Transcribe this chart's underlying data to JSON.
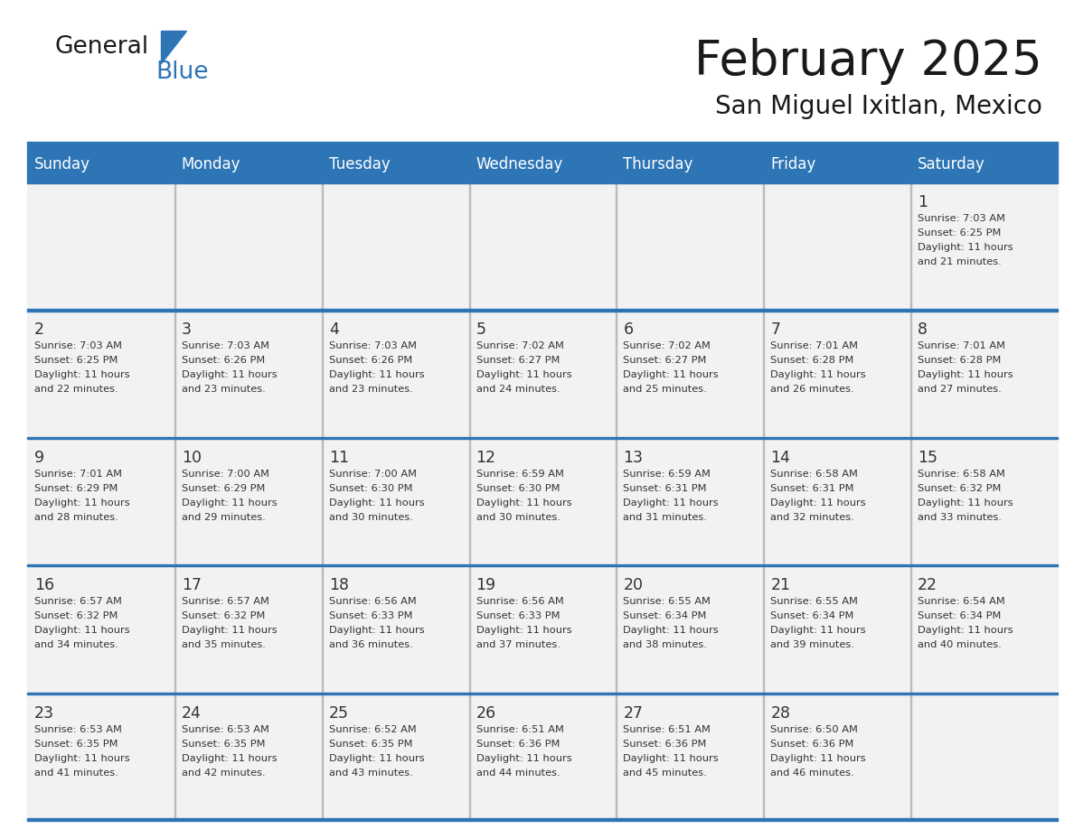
{
  "title": "February 2025",
  "subtitle": "San Miguel Ixitlan, Mexico",
  "days_of_week": [
    "Sunday",
    "Monday",
    "Tuesday",
    "Wednesday",
    "Thursday",
    "Friday",
    "Saturday"
  ],
  "header_bg": "#2E75B6",
  "header_text": "#FFFFFF",
  "cell_bg": "#F2F2F2",
  "cell_text": "#333333",
  "grid_color": "#2E75B6",
  "title_color": "#1a1a1a",
  "logo_general_color": "#1a1a1a",
  "logo_blue_color": "#2E75B6",
  "weeks": [
    [
      null,
      null,
      null,
      null,
      null,
      null,
      {
        "day": 1,
        "sunrise": "7:03 AM",
        "sunset": "6:25 PM",
        "daylight": "11 hours\nand 21 minutes."
      }
    ],
    [
      {
        "day": 2,
        "sunrise": "7:03 AM",
        "sunset": "6:25 PM",
        "daylight": "11 hours\nand 22 minutes."
      },
      {
        "day": 3,
        "sunrise": "7:03 AM",
        "sunset": "6:26 PM",
        "daylight": "11 hours\nand 23 minutes."
      },
      {
        "day": 4,
        "sunrise": "7:03 AM",
        "sunset": "6:26 PM",
        "daylight": "11 hours\nand 23 minutes."
      },
      {
        "day": 5,
        "sunrise": "7:02 AM",
        "sunset": "6:27 PM",
        "daylight": "11 hours\nand 24 minutes."
      },
      {
        "day": 6,
        "sunrise": "7:02 AM",
        "sunset": "6:27 PM",
        "daylight": "11 hours\nand 25 minutes."
      },
      {
        "day": 7,
        "sunrise": "7:01 AM",
        "sunset": "6:28 PM",
        "daylight": "11 hours\nand 26 minutes."
      },
      {
        "day": 8,
        "sunrise": "7:01 AM",
        "sunset": "6:28 PM",
        "daylight": "11 hours\nand 27 minutes."
      }
    ],
    [
      {
        "day": 9,
        "sunrise": "7:01 AM",
        "sunset": "6:29 PM",
        "daylight": "11 hours\nand 28 minutes."
      },
      {
        "day": 10,
        "sunrise": "7:00 AM",
        "sunset": "6:29 PM",
        "daylight": "11 hours\nand 29 minutes."
      },
      {
        "day": 11,
        "sunrise": "7:00 AM",
        "sunset": "6:30 PM",
        "daylight": "11 hours\nand 30 minutes."
      },
      {
        "day": 12,
        "sunrise": "6:59 AM",
        "sunset": "6:30 PM",
        "daylight": "11 hours\nand 30 minutes."
      },
      {
        "day": 13,
        "sunrise": "6:59 AM",
        "sunset": "6:31 PM",
        "daylight": "11 hours\nand 31 minutes."
      },
      {
        "day": 14,
        "sunrise": "6:58 AM",
        "sunset": "6:31 PM",
        "daylight": "11 hours\nand 32 minutes."
      },
      {
        "day": 15,
        "sunrise": "6:58 AM",
        "sunset": "6:32 PM",
        "daylight": "11 hours\nand 33 minutes."
      }
    ],
    [
      {
        "day": 16,
        "sunrise": "6:57 AM",
        "sunset": "6:32 PM",
        "daylight": "11 hours\nand 34 minutes."
      },
      {
        "day": 17,
        "sunrise": "6:57 AM",
        "sunset": "6:32 PM",
        "daylight": "11 hours\nand 35 minutes."
      },
      {
        "day": 18,
        "sunrise": "6:56 AM",
        "sunset": "6:33 PM",
        "daylight": "11 hours\nand 36 minutes."
      },
      {
        "day": 19,
        "sunrise": "6:56 AM",
        "sunset": "6:33 PM",
        "daylight": "11 hours\nand 37 minutes."
      },
      {
        "day": 20,
        "sunrise": "6:55 AM",
        "sunset": "6:34 PM",
        "daylight": "11 hours\nand 38 minutes."
      },
      {
        "day": 21,
        "sunrise": "6:55 AM",
        "sunset": "6:34 PM",
        "daylight": "11 hours\nand 39 minutes."
      },
      {
        "day": 22,
        "sunrise": "6:54 AM",
        "sunset": "6:34 PM",
        "daylight": "11 hours\nand 40 minutes."
      }
    ],
    [
      {
        "day": 23,
        "sunrise": "6:53 AM",
        "sunset": "6:35 PM",
        "daylight": "11 hours\nand 41 minutes."
      },
      {
        "day": 24,
        "sunrise": "6:53 AM",
        "sunset": "6:35 PM",
        "daylight": "11 hours\nand 42 minutes."
      },
      {
        "day": 25,
        "sunrise": "6:52 AM",
        "sunset": "6:35 PM",
        "daylight": "11 hours\nand 43 minutes."
      },
      {
        "day": 26,
        "sunrise": "6:51 AM",
        "sunset": "6:36 PM",
        "daylight": "11 hours\nand 44 minutes."
      },
      {
        "day": 27,
        "sunrise": "6:51 AM",
        "sunset": "6:36 PM",
        "daylight": "11 hours\nand 45 minutes."
      },
      {
        "day": 28,
        "sunrise": "6:50 AM",
        "sunset": "6:36 PM",
        "daylight": "11 hours\nand 46 minutes."
      },
      null
    ]
  ]
}
